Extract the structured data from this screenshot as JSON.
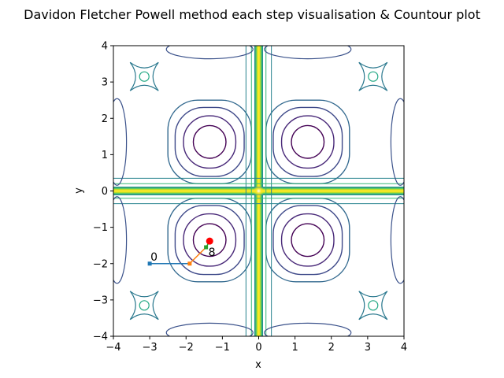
{
  "chart_data": {
    "type": "line",
    "title": "Davidon Fletcher Powell method each step visualisation & Countour plot",
    "xlabel": "x",
    "ylabel": "y",
    "xlim": [
      -4,
      4
    ],
    "ylim": [
      -4,
      4
    ],
    "xticks": [
      -4,
      -3,
      -2,
      -1,
      0,
      1,
      2,
      3,
      4
    ],
    "yticks": [
      -4,
      -3,
      -2,
      -1,
      0,
      1,
      2,
      3,
      4
    ],
    "xtick_labels": [
      "−4",
      "−3",
      "−2",
      "−1",
      "0",
      "1",
      "2",
      "3",
      "4"
    ],
    "ytick_labels": [
      "−4",
      "−3",
      "−2",
      "−1",
      "0",
      "1",
      "2",
      "3",
      "4"
    ],
    "grid": false,
    "legend": "none",
    "contour": {
      "colormap": "viridis",
      "minima_centers": [
        [
          -1.35,
          1.35
        ],
        [
          1.35,
          1.35
        ],
        [
          -1.35,
          -1.35
        ],
        [
          1.35,
          -1.35
        ]
      ]
    },
    "path_segments": [
      {
        "x": [
          -3.0,
          -1.9
        ],
        "y": [
          -2.0,
          -2.0
        ],
        "color": "#1f77b4"
      },
      {
        "x": [
          -1.9,
          -1.45
        ],
        "y": [
          -2.0,
          -1.55
        ],
        "color": "#ff7f0e"
      },
      {
        "x": [
          -1.45,
          -1.35
        ],
        "y": [
          -1.55,
          -1.38
        ],
        "color": "#2ca02c"
      }
    ],
    "path_points": [
      {
        "x": -3.0,
        "y": -2.0,
        "color": "#1f77b4"
      },
      {
        "x": -1.9,
        "y": -2.0,
        "color": "#ff7f0e"
      },
      {
        "x": -1.45,
        "y": -1.55,
        "color": "#2ca02c"
      }
    ],
    "final_point": {
      "x": -1.35,
      "y": -1.38,
      "color": "#ff0000"
    },
    "annotations": [
      {
        "text": "0",
        "x": -3.0,
        "y": -2.0
      },
      {
        "text": "8",
        "x": -1.45,
        "y": -1.55
      }
    ]
  }
}
